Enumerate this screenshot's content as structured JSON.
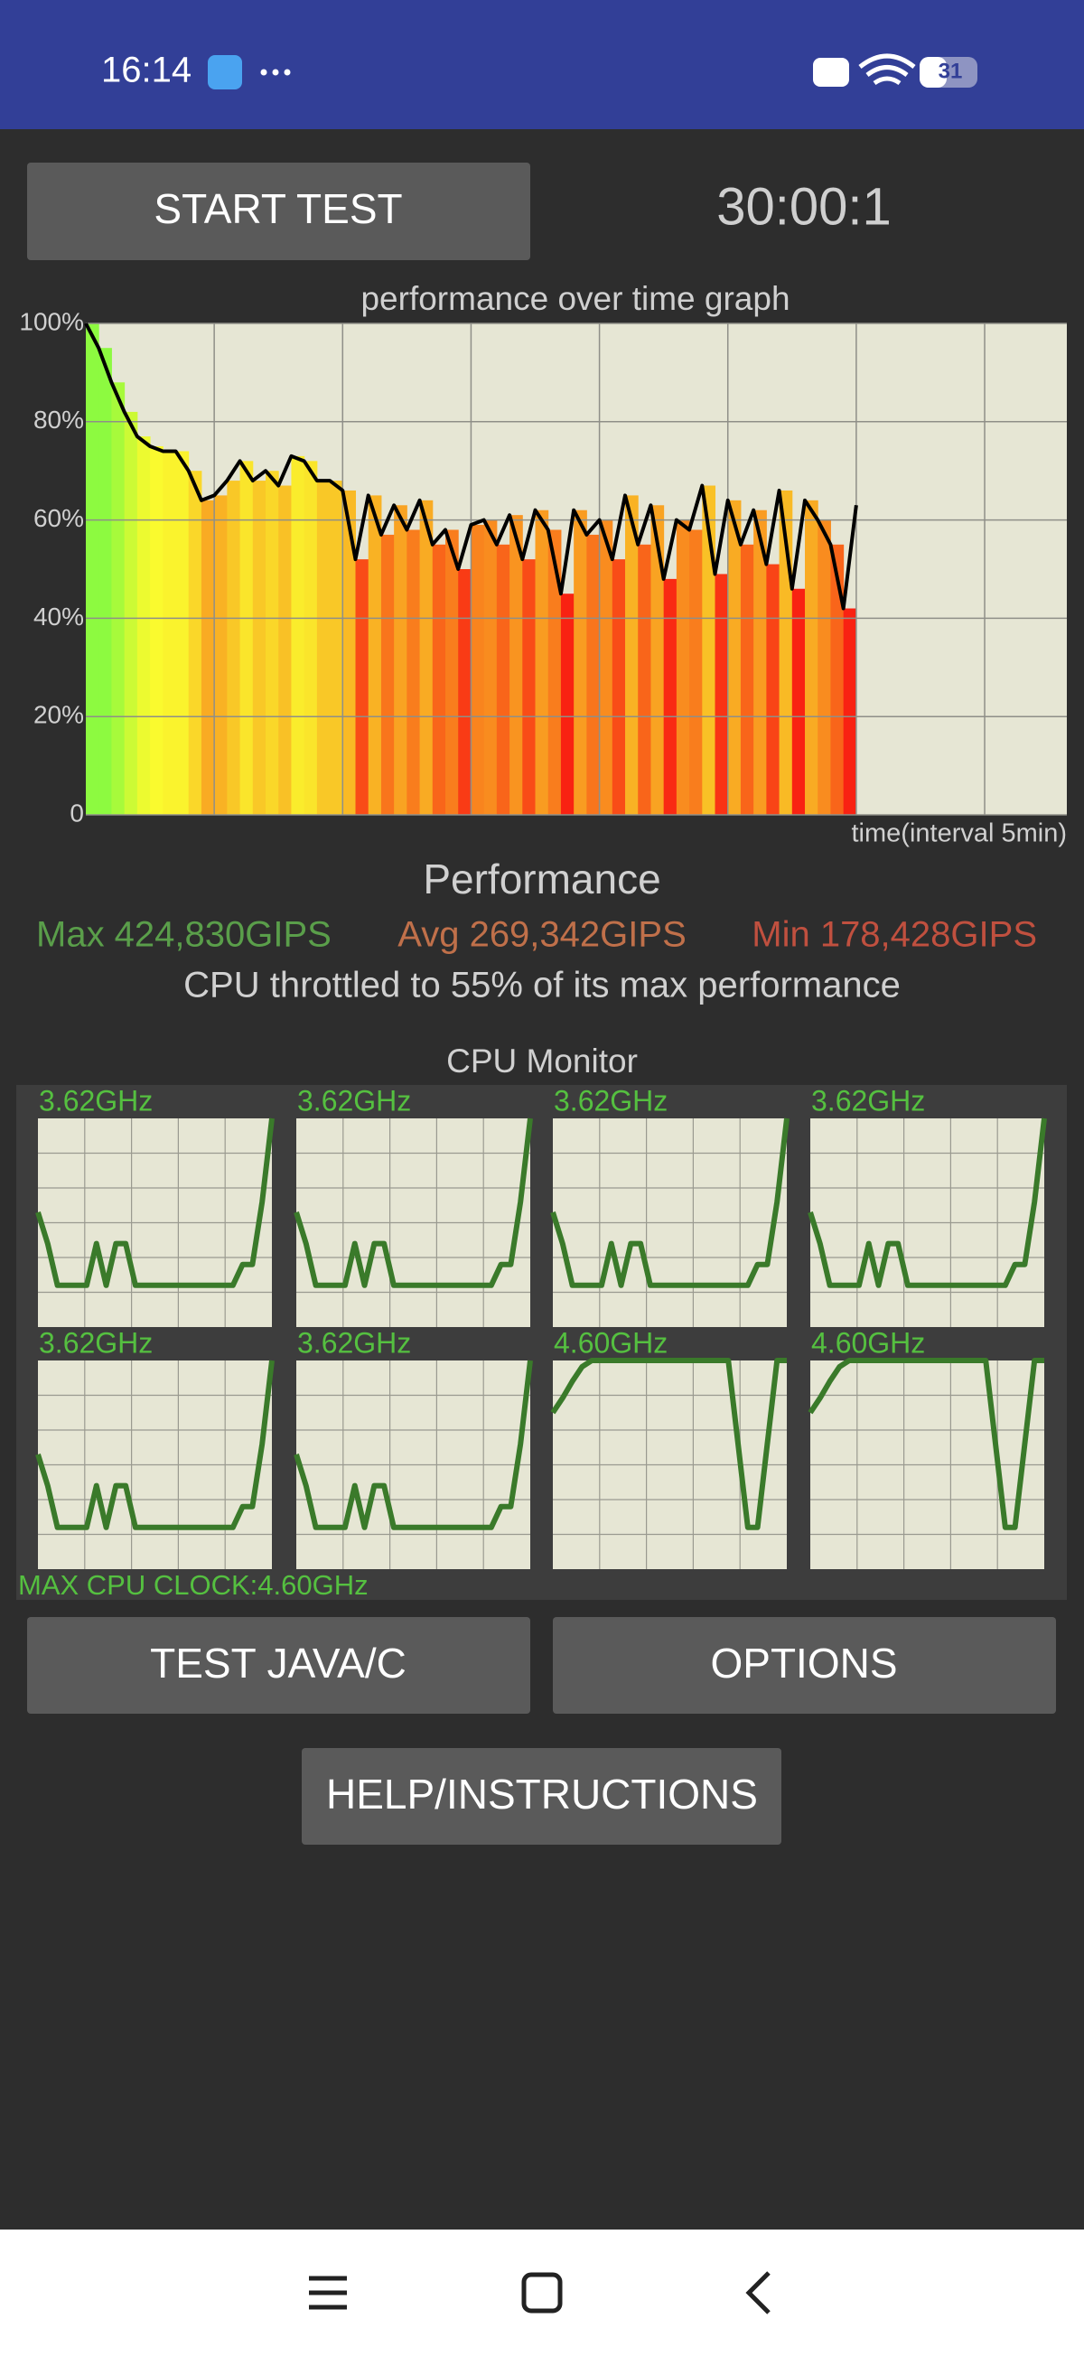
{
  "status_bar": {
    "time": "16:14",
    "battery": "31"
  },
  "timer": "30:00:1",
  "buttons": {
    "start": "START TEST",
    "test": "TEST JAVA/C",
    "options": "OPTIONS",
    "help": "HELP/INSTRUCTIONS"
  },
  "chart_data": {
    "type": "line",
    "title": "performance over time graph",
    "x_label": "time(interval 5min)",
    "x": [
      0,
      0.5,
      1,
      1.5,
      2,
      2.5,
      3,
      3.5,
      4,
      4.5,
      5,
      5.5,
      6,
      6.5,
      7,
      7.5,
      8,
      8.5,
      9,
      9.5,
      10,
      10.5,
      11,
      11.5,
      12,
      12.5,
      13,
      13.5,
      14,
      14.5,
      15,
      15.5,
      16,
      16.5,
      17,
      17.5,
      18,
      18.5,
      19,
      19.5,
      20,
      20.5,
      21,
      21.5,
      22,
      22.5,
      23,
      23.5,
      24,
      24.5,
      25,
      25.5,
      26,
      26.5,
      27,
      27.5,
      28,
      28.5,
      29,
      29.5,
      30
    ],
    "values": [
      100,
      95,
      88,
      82,
      77,
      75,
      74,
      74,
      70,
      64,
      65,
      68,
      72,
      68,
      70,
      67,
      73,
      72,
      68,
      68,
      66,
      52,
      65,
      57,
      63,
      58,
      64,
      55,
      58,
      50,
      59,
      60,
      55,
      61,
      52,
      62,
      58,
      45,
      62,
      57,
      60,
      52,
      65,
      55,
      63,
      48,
      60,
      58,
      67,
      49,
      64,
      55,
      62,
      51,
      66,
      46,
      64,
      60,
      55,
      42,
      63
    ],
    "color": "#000000",
    "xlim": [
      0,
      38.2
    ],
    "x_grid_step": 5,
    "ylim": [
      0,
      100
    ],
    "yticks": [
      0,
      {
        "value": 20,
        "label": "20%"
      },
      {
        "value": 40,
        "label": "40%"
      },
      {
        "value": 60,
        "label": "60%"
      },
      {
        "value": 80,
        "label": "80%"
      },
      {
        "value": 100,
        "label": "100%"
      }
    ],
    "grid": true
  },
  "performance": {
    "heading": "Performance",
    "max": "Max 424,830GIPS",
    "avg": "Avg 269,342GIPS",
    "min": "Min 178,428GIPS",
    "throttle": "CPU throttled to 55% of its max performance"
  },
  "cpu_monitor": {
    "title": "CPU Monitor",
    "max_clock": "MAX CPU CLOCK:4.60GHz",
    "color": "#3a7a2a",
    "cores": [
      {
        "label": "3.62GHz",
        "values": [
          55,
          40,
          20,
          20,
          20,
          20,
          40,
          20,
          40,
          40,
          20,
          20,
          20,
          20,
          20,
          20,
          20,
          20,
          20,
          20,
          20,
          30,
          30,
          60,
          100
        ]
      },
      {
        "label": "3.62GHz",
        "values": [
          55,
          40,
          20,
          20,
          20,
          20,
          40,
          20,
          40,
          40,
          20,
          20,
          20,
          20,
          20,
          20,
          20,
          20,
          20,
          20,
          20,
          30,
          30,
          60,
          100
        ]
      },
      {
        "label": "3.62GHz",
        "values": [
          55,
          40,
          20,
          20,
          20,
          20,
          40,
          20,
          40,
          40,
          20,
          20,
          20,
          20,
          20,
          20,
          20,
          20,
          20,
          20,
          20,
          30,
          30,
          60,
          100
        ]
      },
      {
        "label": "3.62GHz",
        "values": [
          55,
          40,
          20,
          20,
          20,
          20,
          40,
          20,
          40,
          40,
          20,
          20,
          20,
          20,
          20,
          20,
          20,
          20,
          20,
          20,
          20,
          30,
          30,
          60,
          100
        ]
      },
      {
        "label": "3.62GHz",
        "values": [
          55,
          40,
          20,
          20,
          20,
          20,
          40,
          20,
          40,
          40,
          20,
          20,
          20,
          20,
          20,
          20,
          20,
          20,
          20,
          20,
          20,
          30,
          30,
          60,
          100
        ]
      },
      {
        "label": "3.62GHz",
        "values": [
          55,
          40,
          20,
          20,
          20,
          20,
          40,
          20,
          40,
          40,
          20,
          20,
          20,
          20,
          20,
          20,
          20,
          20,
          20,
          20,
          20,
          30,
          30,
          60,
          100
        ]
      },
      {
        "label": "4.60GHz",
        "values": [
          75,
          82,
          90,
          97,
          100,
          100,
          100,
          100,
          100,
          100,
          100,
          100,
          100,
          100,
          100,
          100,
          100,
          100,
          100,
          60,
          20,
          20,
          60,
          100,
          100
        ]
      },
      {
        "label": "4.60GHz",
        "values": [
          75,
          82,
          90,
          97,
          100,
          100,
          100,
          100,
          100,
          100,
          100,
          100,
          100,
          100,
          100,
          100,
          100,
          100,
          100,
          60,
          20,
          20,
          60,
          100,
          100
        ]
      }
    ]
  }
}
